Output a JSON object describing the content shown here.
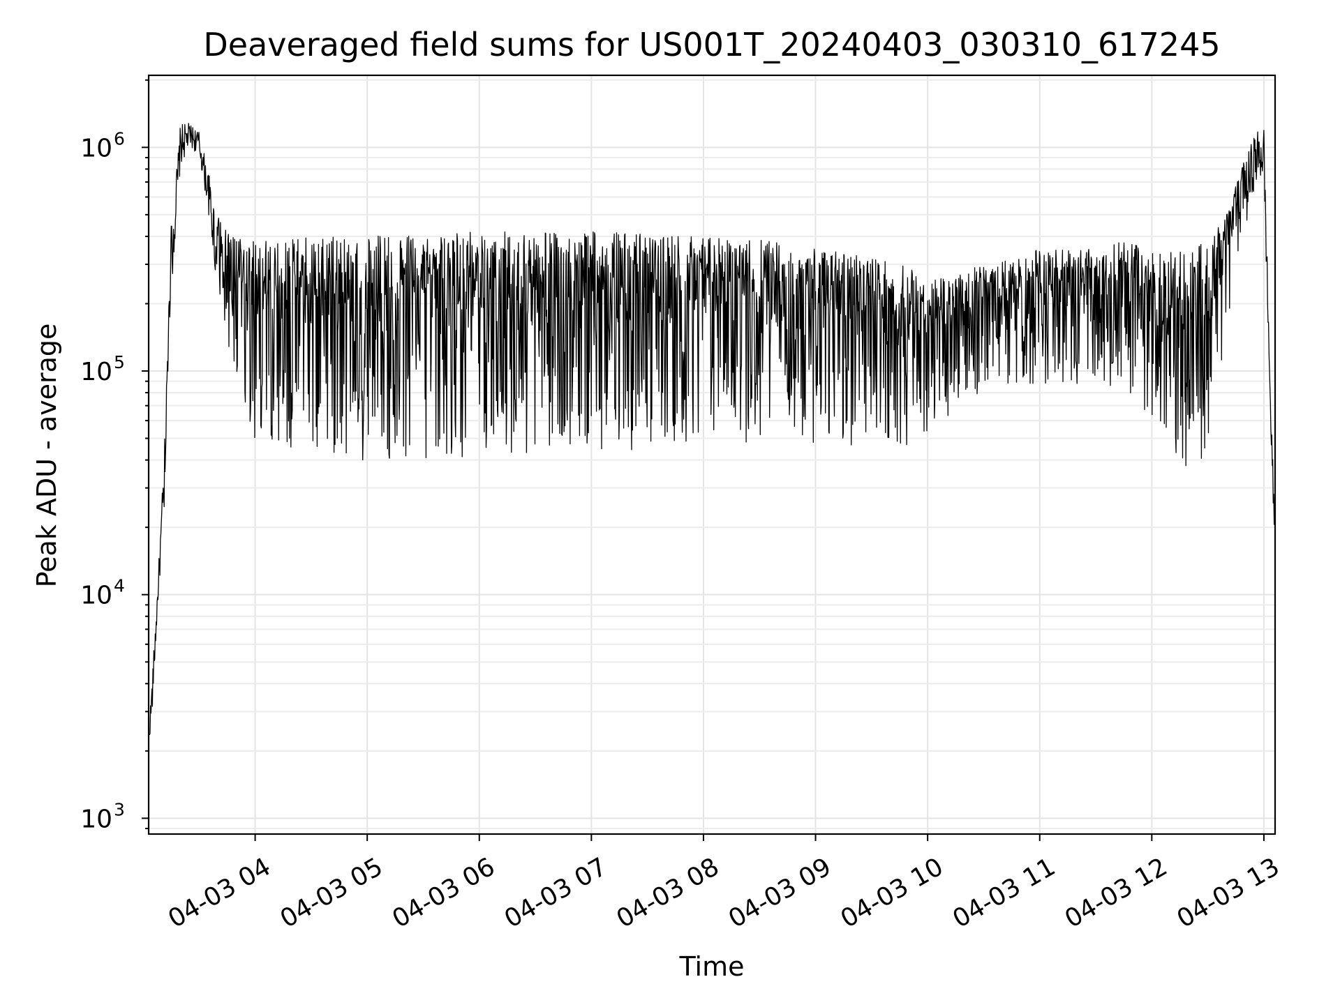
{
  "chart_data": {
    "type": "line",
    "title": "Deaveraged field sums for US001T_20240403_030310_617245",
    "xlabel": "Time",
    "ylabel": "Peak ADU - average",
    "yscale": "log",
    "ylim": [
      850,
      2100000
    ],
    "xlim": [
      "2024-04-03T03:03",
      "2024-04-03T13:06"
    ],
    "grid": true,
    "x_tick_labels": [
      "04-03 04",
      "04-03 05",
      "04-03 06",
      "04-03 07",
      "04-03 08",
      "04-03 09",
      "04-03 10",
      "04-03 11",
      "04-03 12",
      "04-03 13"
    ],
    "y_tick_labels": [
      {
        "base": "10",
        "exp": "3"
      },
      {
        "base": "10",
        "exp": "4"
      },
      {
        "base": "10",
        "exp": "5"
      },
      {
        "base": "10",
        "exp": "6"
      }
    ],
    "series": [
      {
        "color": "#000000",
        "profile": {
          "x": [
            "2024-04-03T03:03",
            "2024-04-03T03:05",
            "2024-04-03T03:08",
            "2024-04-03T03:12",
            "2024-04-03T03:15",
            "2024-04-03T03:20",
            "2024-04-03T03:25",
            "2024-04-03T03:30",
            "2024-04-03T03:35",
            "2024-04-03T03:40",
            "2024-04-03T03:45",
            "2024-04-03T04:00",
            "2024-04-03T04:30",
            "2024-04-03T05:00",
            "2024-04-03T06:00",
            "2024-04-03T07:00",
            "2024-04-03T08:00",
            "2024-04-03T08:40",
            "2024-04-03T09:30",
            "2024-04-03T09:50",
            "2024-04-03T10:00",
            "2024-04-03T10:30",
            "2024-04-03T11:00",
            "2024-04-03T11:30",
            "2024-04-03T11:45",
            "2024-04-03T12:00",
            "2024-04-03T12:20",
            "2024-04-03T12:30",
            "2024-04-03T12:40",
            "2024-04-03T12:50",
            "2024-04-03T12:55",
            "2024-04-03T13:00",
            "2024-04-03T13:04",
            "2024-04-03T13:06"
          ],
          "low": [
            2000,
            3000,
            9000,
            25000,
            200000,
            800000,
            1000000,
            900000,
            500000,
            200000,
            80000,
            22000,
            18000,
            16000,
            17000,
            18000,
            20000,
            22000,
            20000,
            20000,
            30000,
            50000,
            52000,
            50000,
            45000,
            30000,
            15000,
            18000,
            100000,
            400000,
            650000,
            700000,
            40000,
            15000
          ],
          "high": [
            2500,
            4500,
            12000,
            60000,
            450000,
            1300000,
            1300000,
            1200000,
            800000,
            500000,
            420000,
            380000,
            400000,
            400000,
            420000,
            420000,
            400000,
            380000,
            320000,
            300000,
            250000,
            300000,
            350000,
            350000,
            380000,
            350000,
            350000,
            400000,
            500000,
            900000,
            1200000,
            1300000,
            60000,
            22000
          ]
        }
      }
    ]
  }
}
